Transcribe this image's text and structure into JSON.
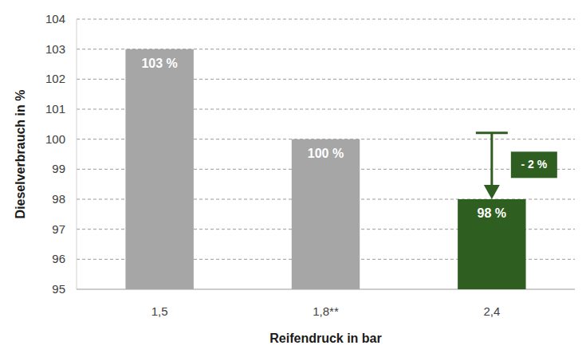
{
  "chart_data": {
    "type": "bar",
    "x_label": "Reifendruck in bar",
    "y_label": "Dieselverbrauch in %",
    "categories": [
      "1,5",
      "1,8**",
      "2,4"
    ],
    "values": [
      103,
      100,
      98
    ],
    "value_labels": [
      "103 %",
      "100 %",
      "98 %"
    ],
    "colors": [
      "#a6a6a6",
      "#a6a6a6",
      "#2f5f20"
    ],
    "ylim": [
      95,
      104
    ],
    "yticks": [
      95,
      96,
      97,
      98,
      99,
      100,
      101,
      102,
      103,
      104
    ],
    "grid": true,
    "data_labels": true,
    "annotations": [
      {
        "text": "- 2 %",
        "category": "2,4",
        "from": 100,
        "to": 98
      }
    ]
  }
}
